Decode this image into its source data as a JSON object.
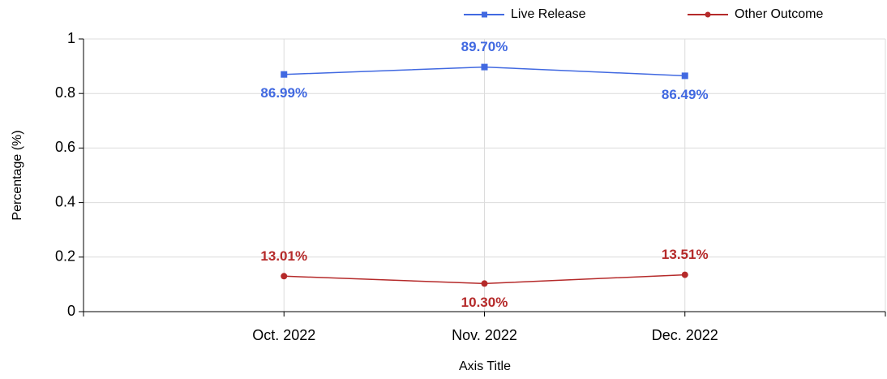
{
  "chart_data": {
    "type": "line",
    "categories": [
      "Oct. 2022",
      "Nov. 2022",
      "Dec. 2022"
    ],
    "x_label": "Axis Title",
    "y_label": "Percentage (%)",
    "ylim": [
      0,
      1
    ],
    "yticks": [
      0,
      0.2,
      0.4,
      0.6,
      0.8,
      1
    ],
    "grid": true,
    "legend": "top-right",
    "series": [
      {
        "name": "Live Release",
        "color": "#4169e1",
        "marker": "square",
        "values": [
          0.8699,
          0.897,
          0.8649
        ],
        "value_labels": [
          "86.99%",
          "89.70%",
          "86.49%"
        ]
      },
      {
        "name": "Other Outcome",
        "color": "#b52a2a",
        "marker": "circle",
        "values": [
          0.1301,
          0.103,
          0.1351
        ],
        "value_labels": [
          "13.01%",
          "10.30%",
          "13.51%"
        ]
      }
    ]
  }
}
